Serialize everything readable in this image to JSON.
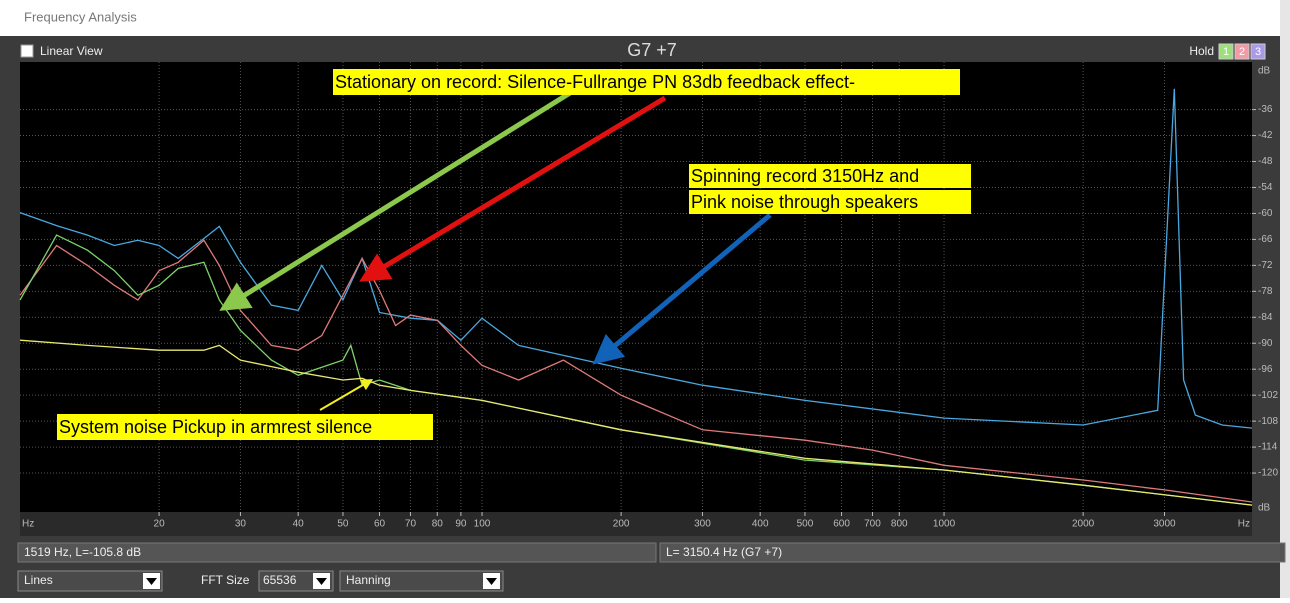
{
  "window": {
    "title": "Frequency Analysis"
  },
  "header": {
    "linear_view": "Linear View",
    "note": "G7 +7",
    "hold": "Hold",
    "hold_slots": [
      "1",
      "2",
      "3"
    ]
  },
  "chart_data": {
    "type": "line",
    "x_scale": "log",
    "grid": true,
    "xlim": [
      10,
      4640
    ],
    "ylim": [
      -129,
      -25
    ],
    "xticks": [
      20,
      30,
      40,
      50,
      60,
      70,
      80,
      90,
      100,
      200,
      300,
      400,
      500,
      600,
      700,
      800,
      1000,
      2000,
      3000
    ],
    "yticks": [
      -36,
      -42,
      -48,
      -54,
      -60,
      -66,
      -72,
      -78,
      -84,
      -90,
      -96,
      -102,
      -108,
      -114,
      -120
    ],
    "x_unit": "Hz",
    "y_unit": "dB",
    "series": [
      {
        "color": "#4aa8e0",
        "x": [
          10,
          12,
          14,
          16,
          18,
          20,
          22,
          25,
          27,
          30,
          35,
          40,
          45,
          50,
          55,
          60,
          70,
          80,
          90,
          100,
          120,
          150,
          200,
          300,
          500,
          1000,
          2000,
          2900,
          3150,
          3300,
          3500,
          4000,
          4640
        ],
        "values": [
          -59.8,
          -62.8,
          -65,
          -67.4,
          -66.2,
          -67.4,
          -70.4,
          -65.8,
          -63,
          -71.3,
          -81.2,
          -82.4,
          -72,
          -80,
          -70.4,
          -82.9,
          -84.2,
          -84.7,
          -89.3,
          -84.2,
          -90.5,
          -92.8,
          -95.8,
          -99.7,
          -103.2,
          -107.3,
          -108.9,
          -105.5,
          -31.2,
          -98.5,
          -106.6,
          -108.9,
          -109.6
        ]
      },
      {
        "color": "#e07a7a",
        "x": [
          10,
          12,
          14,
          16,
          18,
          20,
          22,
          25,
          27,
          30,
          35,
          40,
          45,
          50,
          55,
          60,
          65,
          70,
          80,
          90,
          100,
          120,
          150,
          200,
          300,
          500,
          700,
          1000,
          2000,
          3000,
          4640
        ],
        "values": [
          -78.9,
          -67.4,
          -72,
          -76.6,
          -80,
          -73.2,
          -71.3,
          -66.2,
          -72,
          -82.4,
          -90.5,
          -91.6,
          -88.2,
          -78.9,
          -70.4,
          -77.8,
          -85.9,
          -83.5,
          -84.7,
          -90.5,
          -95.1,
          -98.5,
          -93.9,
          -102,
          -110,
          -112.4,
          -114.7,
          -118.2,
          -121.6,
          -123.9,
          -126.7
        ]
      },
      {
        "color": "#7ed36a",
        "x": [
          10,
          12,
          14,
          16,
          18,
          20,
          22,
          25,
          27,
          30,
          35,
          40,
          50,
          52,
          55,
          60,
          70,
          100,
          200,
          500,
          1000,
          2000,
          4640
        ],
        "values": [
          -80,
          -65,
          -68.5,
          -73.2,
          -78.9,
          -76.6,
          -72.7,
          -71.3,
          -80,
          -87,
          -93.9,
          -97.4,
          -93.9,
          -90.5,
          -99.7,
          -98.5,
          -100.9,
          -103.2,
          -110,
          -117,
          -119.3,
          -122.8,
          -127.4
        ]
      },
      {
        "color": "#e8e870",
        "x": [
          10,
          14,
          20,
          25,
          27,
          30,
          40,
          50,
          55,
          60,
          70,
          100,
          200,
          500,
          1000,
          2000,
          4640
        ],
        "values": [
          -89.3,
          -90.5,
          -91.6,
          -91.6,
          -90.5,
          -93.9,
          -96.7,
          -98.5,
          -98.1,
          -99.7,
          -100.9,
          -103.2,
          -110,
          -116.6,
          -119.3,
          -122.8,
          -127.4
        ]
      }
    ],
    "annotations": [
      "Stationary on record: Silence-Fullrange PN 83db feedback effect-",
      "Spinning record 3150Hz and",
      "Pink noise through speakers",
      "System noise Pickup in armrest silence"
    ]
  },
  "status": [
    "1519 Hz, L=-105.8 dB",
    "L= 3150.4 Hz (G7 +7)"
  ],
  "controls": {
    "display": "Lines",
    "fft_label": "FFT Size",
    "fft_size": "65536",
    "window": "Hanning"
  }
}
